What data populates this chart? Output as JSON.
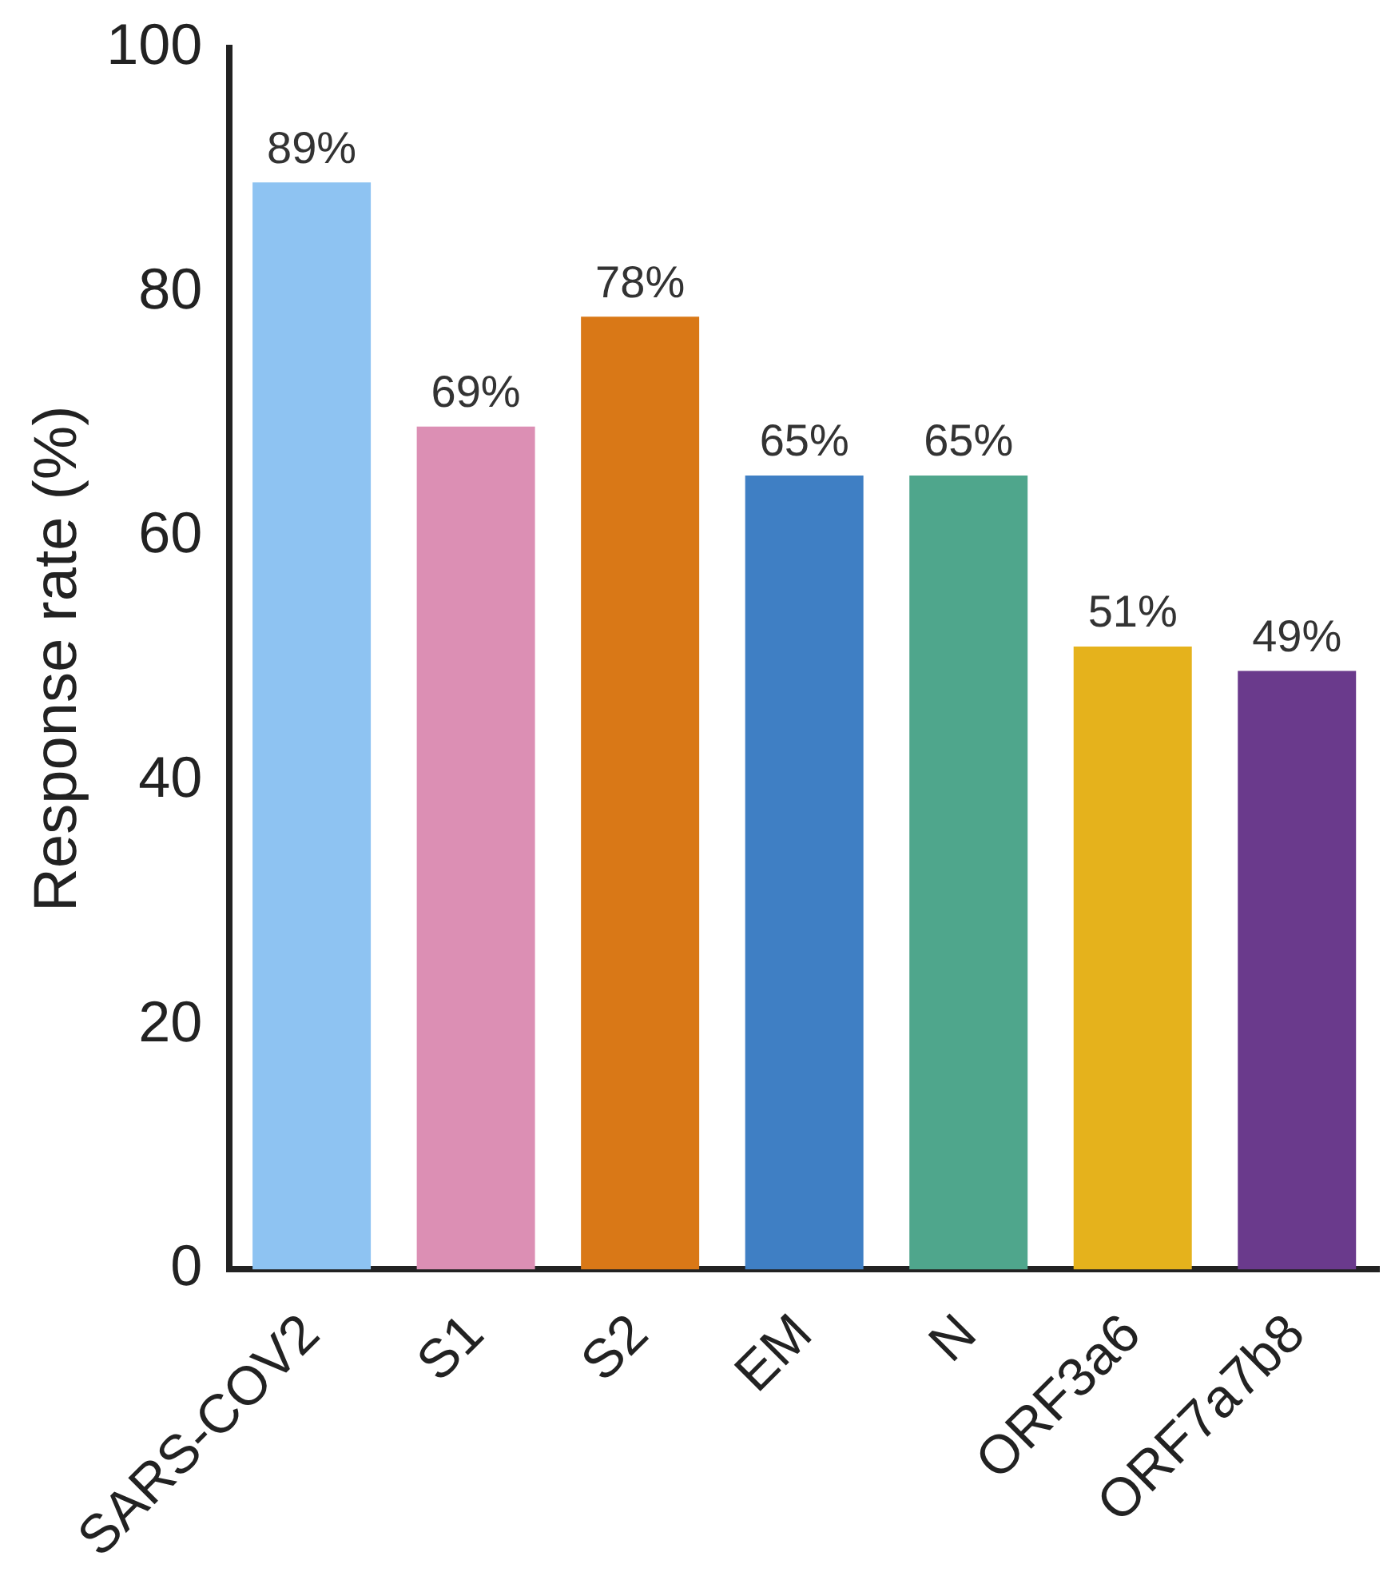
{
  "chart_data": {
    "type": "bar",
    "ylabel": "Response rate (%)",
    "categories": [
      "SARS-COV2",
      "S1",
      "S2",
      "EM",
      "N",
      "ORF3a6",
      "ORF7a7b8"
    ],
    "values": [
      89,
      69,
      78,
      65,
      65,
      51,
      49
    ],
    "value_labels": [
      "89%",
      "69%",
      "78%",
      "65%",
      "65%",
      "51%",
      "49%"
    ],
    "colors": [
      "#8ec3f2",
      "#dc8fb4",
      "#d97817",
      "#3f7fc4",
      "#4fa68c",
      "#e5b21c",
      "#6a3a8c"
    ],
    "ylim": [
      0,
      100
    ],
    "yticks": [
      0,
      20,
      40,
      60,
      80,
      100
    ],
    "grid": false,
    "legend": false
  }
}
